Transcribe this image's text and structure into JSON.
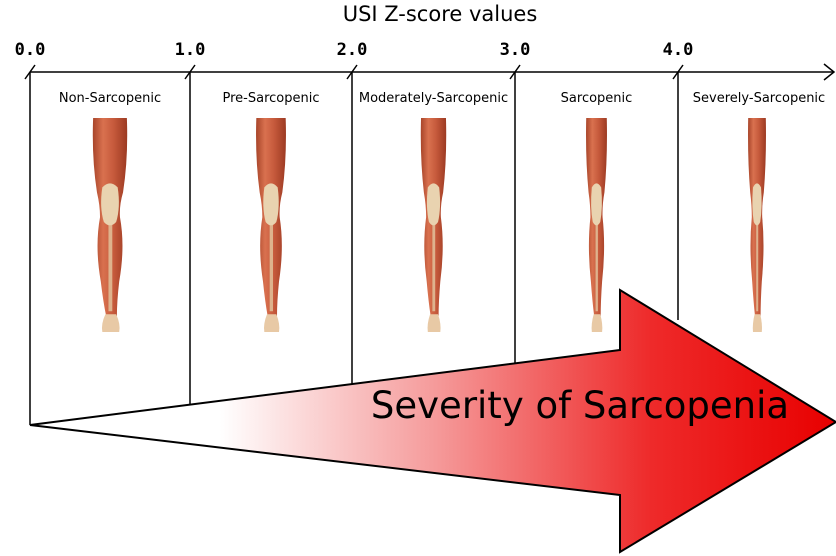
{
  "axis": {
    "title": "USI Z-score values",
    "ticks": [
      "0.0",
      "1.0",
      "2.0",
      "3.0",
      "4.0"
    ]
  },
  "stages": [
    "Non-Sarcopenic",
    "Pre-Sarcopenic",
    "Moderately-Sarcopenic",
    "Sarcopenic",
    "Severely-Sarcopenic"
  ],
  "arrow": {
    "label": "Severity of Sarcopenia"
  }
}
